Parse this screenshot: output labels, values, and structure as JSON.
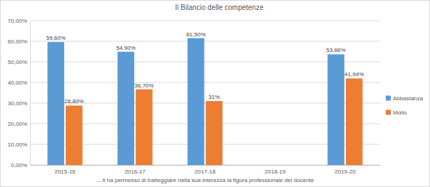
{
  "chart_data": {
    "type": "bar",
    "title": "Il Bilancio delle competenze",
    "x_label": "... ti ha permesso di tratteggiare nella sua interezza la figura professionale del docente",
    "categories": [
      "2015-16",
      "2016-17",
      "2017-18",
      "2018-19",
      "2019-20"
    ],
    "series": [
      {
        "name": "Abbastanza",
        "color": "#5b9bd5",
        "values": [
          59.6,
          54.9,
          61.5,
          null,
          53.66
        ],
        "value_labels": [
          "59,60%",
          "54,90%",
          "61,50%",
          null,
          "53,66%"
        ]
      },
      {
        "name": "Molto",
        "color": "#ed7d31",
        "values": [
          28.8,
          36.7,
          31,
          null,
          41.94
        ],
        "value_labels": [
          "28,80%",
          "36,70%",
          "31%",
          null,
          "41,94%"
        ]
      }
    ],
    "ylim": [
      0,
      70
    ],
    "yticks": [
      {
        "value": 0,
        "label": "0,00%"
      },
      {
        "value": 10,
        "label": "10,00%"
      },
      {
        "value": 20,
        "label": "20,00%"
      },
      {
        "value": 30,
        "label": "30,00%"
      },
      {
        "value": 40,
        "label": "40,00%"
      },
      {
        "value": 50,
        "label": "50,00%"
      },
      {
        "value": 60,
        "label": "60,00%"
      },
      {
        "value": 70,
        "label": "70,00%"
      }
    ],
    "grid": true,
    "data_labels": true,
    "legend": "right"
  }
}
